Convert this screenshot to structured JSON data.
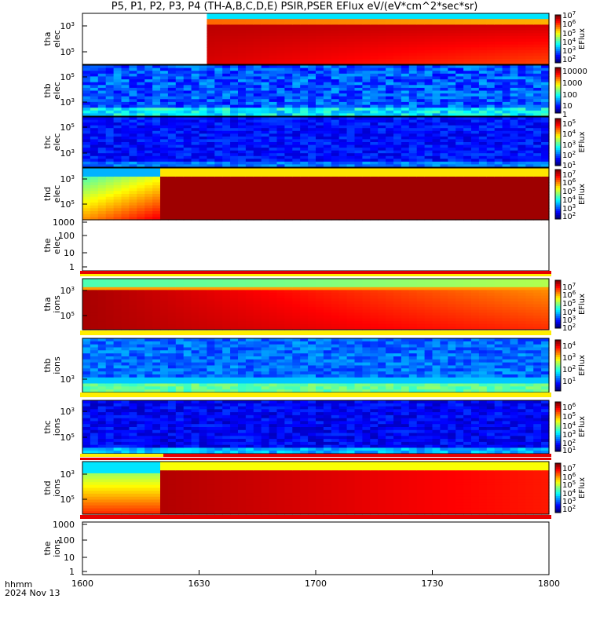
{
  "title": "P5, P1, P2, P3, P4 (TH-A,B,C,D,E) PSIR,PSER EFlux eV/(eV*cm^2*sec*sr)",
  "footer": {
    "line1": "hhmm",
    "line2": "2024 Nov 13"
  },
  "chart_data": [
    {
      "type": "heatmap",
      "probe": "tha",
      "species": "elec",
      "ylabel": "tha elec",
      "ytick_labels": [
        "10^3",
        "10^5"
      ],
      "cbar_label": "EFlux",
      "cbar_ticks": [
        "10^7",
        "10^6",
        "10^5",
        "10^4",
        "10^3",
        "10^2"
      ],
      "data_start_hhmm": "1632"
    },
    {
      "type": "heatmap",
      "probe": "thb",
      "species": "elec",
      "ylabel": "thb elec",
      "ytick_labels": [
        "10^5",
        "10^3"
      ],
      "cbar_label": "",
      "cbar_ticks": [
        "10000",
        "1000",
        "100",
        "10",
        "1"
      ]
    },
    {
      "type": "heatmap",
      "probe": "thc",
      "species": "elec",
      "ylabel": "thc elec",
      "ytick_labels": [
        "10^5",
        "10^3"
      ],
      "cbar_label": "EFlux",
      "cbar_ticks": [
        "10^5",
        "10^4",
        "10^3",
        "10^2",
        "10^1"
      ]
    },
    {
      "type": "heatmap",
      "probe": "thd",
      "species": "elec",
      "ylabel": "thd elec",
      "ytick_labels": [
        "10^3",
        "10^5"
      ],
      "cbar_label": "EFlux",
      "cbar_ticks": [
        "10^7",
        "10^6",
        "10^5",
        "10^4",
        "10^3",
        "10^2"
      ],
      "transition_hhmm": "1620"
    },
    {
      "type": "heatmap",
      "probe": "the",
      "species": "elec",
      "ylabel": "the elec",
      "ytick_labels": [
        "1000",
        "100",
        "10",
        "1"
      ],
      "empty": true
    },
    {
      "type": "heatmap",
      "probe": "tha",
      "species": "ions",
      "ylabel": "tha ions",
      "ytick_labels": [
        "10^3",
        "10^5"
      ],
      "cbar_label": "EFlux",
      "cbar_ticks": [
        "10^7",
        "10^6",
        "10^5",
        "10^4",
        "10^3",
        "10^2"
      ]
    },
    {
      "type": "heatmap",
      "probe": "thb",
      "species": "ions",
      "ylabel": "thb ions",
      "ytick_labels": [
        "10^3"
      ],
      "cbar_label": "EFlux",
      "cbar_ticks": [
        "10^4",
        "10^3",
        "10^2",
        "10^1"
      ]
    },
    {
      "type": "heatmap",
      "probe": "thc",
      "species": "ions",
      "ylabel": "thc ions",
      "ytick_labels": [
        "10^3",
        "10^5"
      ],
      "cbar_label": "EFlux",
      "cbar_ticks": [
        "10^6",
        "10^5",
        "10^4",
        "10^3",
        "10^2",
        "10^1"
      ]
    },
    {
      "type": "heatmap",
      "probe": "thd",
      "species": "ions",
      "ylabel": "thd ions",
      "ytick_labels": [
        "10^3",
        "10^5"
      ],
      "cbar_label": "EFlux",
      "cbar_ticks": [
        "10^7",
        "10^6",
        "10^5",
        "10^4",
        "10^3",
        "10^2"
      ],
      "transition_hhmm": "1620"
    },
    {
      "type": "heatmap",
      "probe": "the",
      "species": "ions",
      "ylabel": "the ions",
      "ytick_labels": [
        "1000",
        "100",
        "10",
        "1"
      ],
      "empty": true
    }
  ],
  "x_axis": {
    "tick_labels": [
      "1600",
      "1630",
      "1700",
      "1730",
      "1800"
    ],
    "range_hhmm": [
      "1600",
      "1800"
    ]
  },
  "colors": {
    "red": "#e60000",
    "yellow": "#ffee00"
  }
}
